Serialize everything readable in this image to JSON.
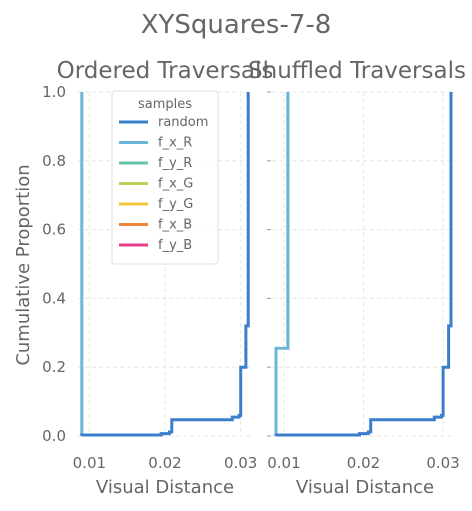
{
  "chart_data": {
    "type": "line",
    "title": "XYSquares-7-8",
    "ylabel": "Cumulative Proportion",
    "colors": {
      "random": "#3a7fcb",
      "f_x_R": "#6bb6d8",
      "f_y_R": "#63c3ac",
      "f_x_G": "#b9d35a",
      "f_y_G": "#f2c53d",
      "f_x_B": "#ef8536",
      "f_y_B": "#e4418d"
    },
    "legend": {
      "title": "samples",
      "placement": "upper-left",
      "entries": [
        "random",
        "f_x_R",
        "f_y_R",
        "f_x_G",
        "f_y_G",
        "f_x_B",
        "f_y_B"
      ]
    },
    "yticks": [
      "0.0",
      "0.2",
      "0.4",
      "0.6",
      "0.8",
      "1.0"
    ],
    "ylim": [
      0,
      1
    ],
    "grid": true,
    "panels": [
      {
        "title": "Ordered Traversals",
        "xlabel": "Visual Distance",
        "xlim": [
          0.0085,
          0.0315
        ],
        "xticks": [
          "0.01",
          "0.02",
          "0.03"
        ],
        "series": [
          {
            "name": "f_x_R",
            "points": [
              [
                0.009,
                0.0
              ],
              [
                0.009,
                1.0
              ]
            ]
          },
          {
            "name": "random",
            "points": [
              [
                0.009,
                0.0
              ],
              [
                0.009,
                0.003
              ],
              [
                0.0195,
                0.003
              ],
              [
                0.0195,
                0.007
              ],
              [
                0.0206,
                0.007
              ],
              [
                0.0206,
                0.012
              ],
              [
                0.0209,
                0.012
              ],
              [
                0.0209,
                0.047
              ],
              [
                0.0289,
                0.047
              ],
              [
                0.0289,
                0.055
              ],
              [
                0.0298,
                0.055
              ],
              [
                0.0298,
                0.06
              ],
              [
                0.03,
                0.06
              ],
              [
                0.03,
                0.2
              ],
              [
                0.0307,
                0.2
              ],
              [
                0.0307,
                0.32
              ],
              [
                0.031,
                0.32
              ],
              [
                0.031,
                1.0
              ]
            ]
          }
        ]
      },
      {
        "title": "Shuffled Traversals",
        "xlabel": "Visual Distance",
        "xlim": [
          0.0085,
          0.0315
        ],
        "xticks": [
          "0.01",
          "0.02",
          "0.03"
        ],
        "series": [
          {
            "name": "f_y_R",
            "points": [
              [
                0.0105,
                0.255
              ],
              [
                0.0105,
                1.0
              ]
            ]
          },
          {
            "name": "f_x_R",
            "points": [
              [
                0.009,
                0.0
              ],
              [
                0.009,
                0.255
              ],
              [
                0.0105,
                0.255
              ],
              [
                0.0105,
                1.0
              ]
            ]
          },
          {
            "name": "random",
            "points": [
              [
                0.009,
                0.0
              ],
              [
                0.009,
                0.003
              ],
              [
                0.0195,
                0.003
              ],
              [
                0.0195,
                0.007
              ],
              [
                0.0206,
                0.007
              ],
              [
                0.0206,
                0.012
              ],
              [
                0.0209,
                0.012
              ],
              [
                0.0209,
                0.047
              ],
              [
                0.0289,
                0.047
              ],
              [
                0.0289,
                0.055
              ],
              [
                0.0298,
                0.055
              ],
              [
                0.0298,
                0.06
              ],
              [
                0.03,
                0.06
              ],
              [
                0.03,
                0.2
              ],
              [
                0.0307,
                0.2
              ],
              [
                0.0307,
                0.32
              ],
              [
                0.031,
                0.32
              ],
              [
                0.031,
                1.0
              ]
            ]
          }
        ]
      }
    ]
  }
}
